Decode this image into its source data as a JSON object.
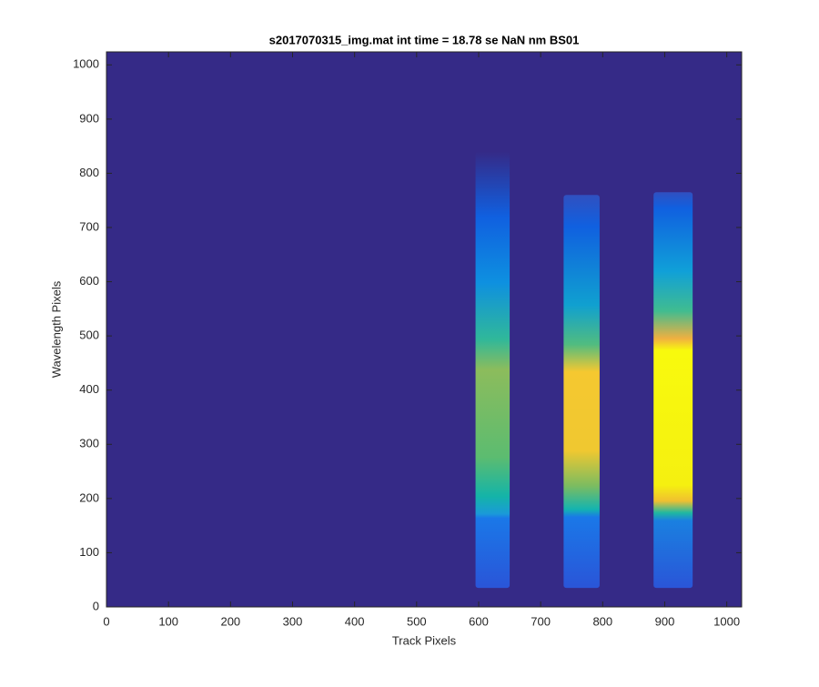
{
  "chart_data": {
    "type": "image",
    "title": "s2017070315_img.mat int time = 18.78 se  NaN nm BS01",
    "x_label": "Track Pixels",
    "y_label": "Wavelength Pixels",
    "xlim": [
      0,
      1024
    ],
    "ylim": [
      0,
      1024
    ],
    "xticks": [
      0,
      100,
      200,
      300,
      400,
      500,
      600,
      700,
      800,
      900,
      1000
    ],
    "yticks": [
      0,
      100,
      200,
      300,
      400,
      500,
      600,
      700,
      800,
      900,
      1000
    ],
    "background": "#352a87",
    "tracks": [
      {
        "x": [
          595,
          650
        ],
        "y": [
          35,
          840
        ]
      },
      {
        "x": [
          737,
          795
        ],
        "y": [
          35,
          760
        ]
      },
      {
        "x": [
          882,
          945
        ],
        "y": [
          35,
          765
        ]
      }
    ]
  }
}
